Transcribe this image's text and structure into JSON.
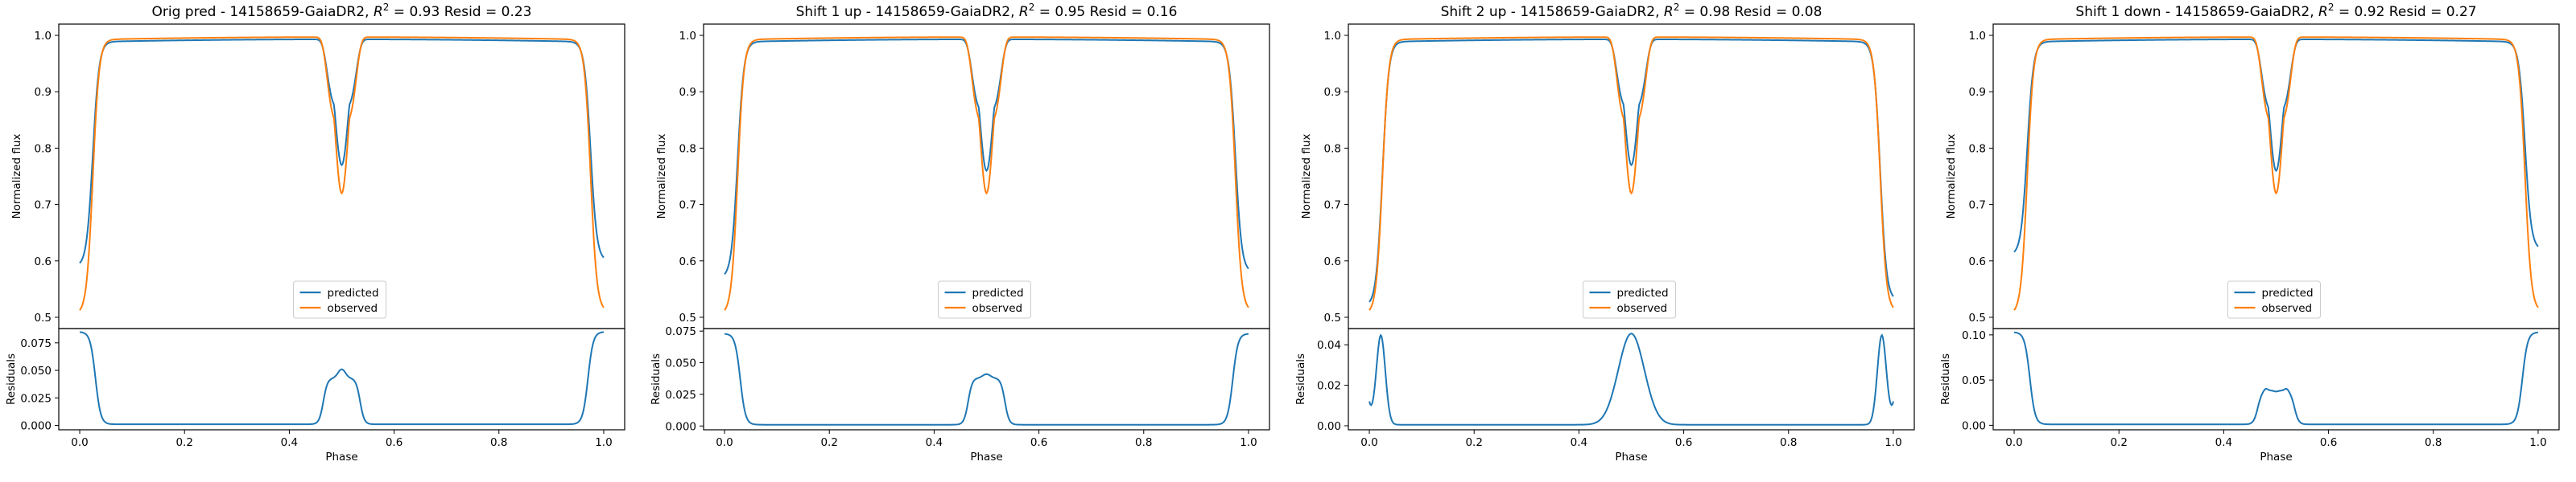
{
  "colors": {
    "predicted": "#1f77b4",
    "observed": "#ff7f0e",
    "residual": "#1f77b4"
  },
  "chart_data": [
    {
      "type": "line",
      "title_pre": "Orig pred - 14158659-GaiaDR2, ",
      "title_r2": "0.93",
      "title_post": " Resid = 0.23",
      "legend": [
        "predicted",
        "observed"
      ],
      "top": {
        "ylabel": "Normalized flux",
        "ylim": [
          0.48,
          1.02
        ],
        "yticks": [
          "0.5",
          "0.6",
          "0.7",
          "0.8",
          "0.9",
          "1.0"
        ],
        "predicted": {
          "start": 0.59,
          "flat": 0.993,
          "dip": 0.77,
          "end": 0.6
        },
        "observed": {
          "start": 0.505,
          "flat": 0.997,
          "dip": 0.72,
          "end": 0.51
        }
      },
      "bottom": {
        "ylabel": "Residuals",
        "xlabel": "Phase",
        "ylim": [
          -0.004,
          0.088
        ],
        "yticks": [
          "0.000",
          "0.025",
          "0.050",
          "0.075"
        ],
        "shape": {
          "edge": 0.085,
          "mid": 0.043,
          "mid_peak": 0.051,
          "base": 0.001
        }
      },
      "xticks": [
        "0.0",
        "0.2",
        "0.4",
        "0.6",
        "0.8",
        "1.0"
      ]
    },
    {
      "type": "line",
      "title_pre": "Shift 1 up - 14158659-GaiaDR2, ",
      "title_r2": "0.95",
      "title_post": " Resid = 0.16",
      "legend": [
        "predicted",
        "observed"
      ],
      "top": {
        "ylabel": "Normalized flux",
        "ylim": [
          0.48,
          1.02
        ],
        "yticks": [
          "0.5",
          "0.6",
          "0.7",
          "0.8",
          "0.9",
          "1.0"
        ],
        "predicted": {
          "start": 0.57,
          "flat": 0.993,
          "dip": 0.76,
          "end": 0.58
        },
        "observed": {
          "start": 0.505,
          "flat": 0.997,
          "dip": 0.72,
          "end": 0.51
        }
      },
      "bottom": {
        "ylabel": "Residuals",
        "xlabel": "Phase",
        "ylim": [
          -0.003,
          0.077
        ],
        "yticks": [
          "0.000",
          "0.025",
          "0.050",
          "0.075"
        ],
        "shape": {
          "edge": 0.073,
          "mid": 0.038,
          "mid_peak": 0.041,
          "base": 0.001
        }
      },
      "xticks": [
        "0.0",
        "0.2",
        "0.4",
        "0.6",
        "0.8",
        "1.0"
      ]
    },
    {
      "type": "line",
      "title_pre": "Shift 2 up - 14158659-GaiaDR2, ",
      "title_r2": "0.98",
      "title_post": " Resid = 0.08",
      "legend": [
        "predicted",
        "observed"
      ],
      "top": {
        "ylabel": "Normalized flux",
        "ylim": [
          0.48,
          1.02
        ],
        "yticks": [
          "0.5",
          "0.6",
          "0.7",
          "0.8",
          "0.9",
          "1.0"
        ],
        "predicted": {
          "start": 0.52,
          "flat": 0.993,
          "dip": 0.77,
          "end": 0.53
        },
        "observed": {
          "start": 0.505,
          "flat": 0.997,
          "dip": 0.72,
          "end": 0.51
        }
      },
      "bottom": {
        "ylabel": "Residuals",
        "xlabel": "Phase",
        "ylim": [
          -0.002,
          0.048
        ],
        "yticks": [
          "0.00",
          "0.02",
          "0.04"
        ],
        "shape": {
          "edge": 0.044,
          "mid": 0.045,
          "base": 0.0005,
          "mode": "humps"
        }
      },
      "xticks": [
        "0.0",
        "0.2",
        "0.4",
        "0.6",
        "0.8",
        "1.0"
      ]
    },
    {
      "type": "line",
      "title_pre": "Shift 1 down - 14158659-GaiaDR2, ",
      "title_r2": "0.92",
      "title_post": " Resid = 0.27",
      "legend": [
        "predicted",
        "observed"
      ],
      "top": {
        "ylabel": "Normalized flux",
        "ylim": [
          0.48,
          1.02
        ],
        "yticks": [
          "0.5",
          "0.6",
          "0.7",
          "0.8",
          "0.9",
          "1.0"
        ],
        "predicted": {
          "start": 0.61,
          "flat": 0.993,
          "dip": 0.76,
          "end": 0.62
        },
        "observed": {
          "start": 0.505,
          "flat": 0.997,
          "dip": 0.72,
          "end": 0.51
        }
      },
      "bottom": {
        "ylabel": "Residuals",
        "xlabel": "Phase",
        "ylim": [
          -0.005,
          0.107
        ],
        "yticks": [
          "0.00",
          "0.05",
          "0.10"
        ],
        "shape": {
          "edge": 0.103,
          "mid": 0.038,
          "mid_peak": 0.041,
          "base": 0.001,
          "mode": "double"
        }
      },
      "xticks": [
        "0.0",
        "0.2",
        "0.4",
        "0.6",
        "0.8",
        "1.0"
      ]
    }
  ]
}
